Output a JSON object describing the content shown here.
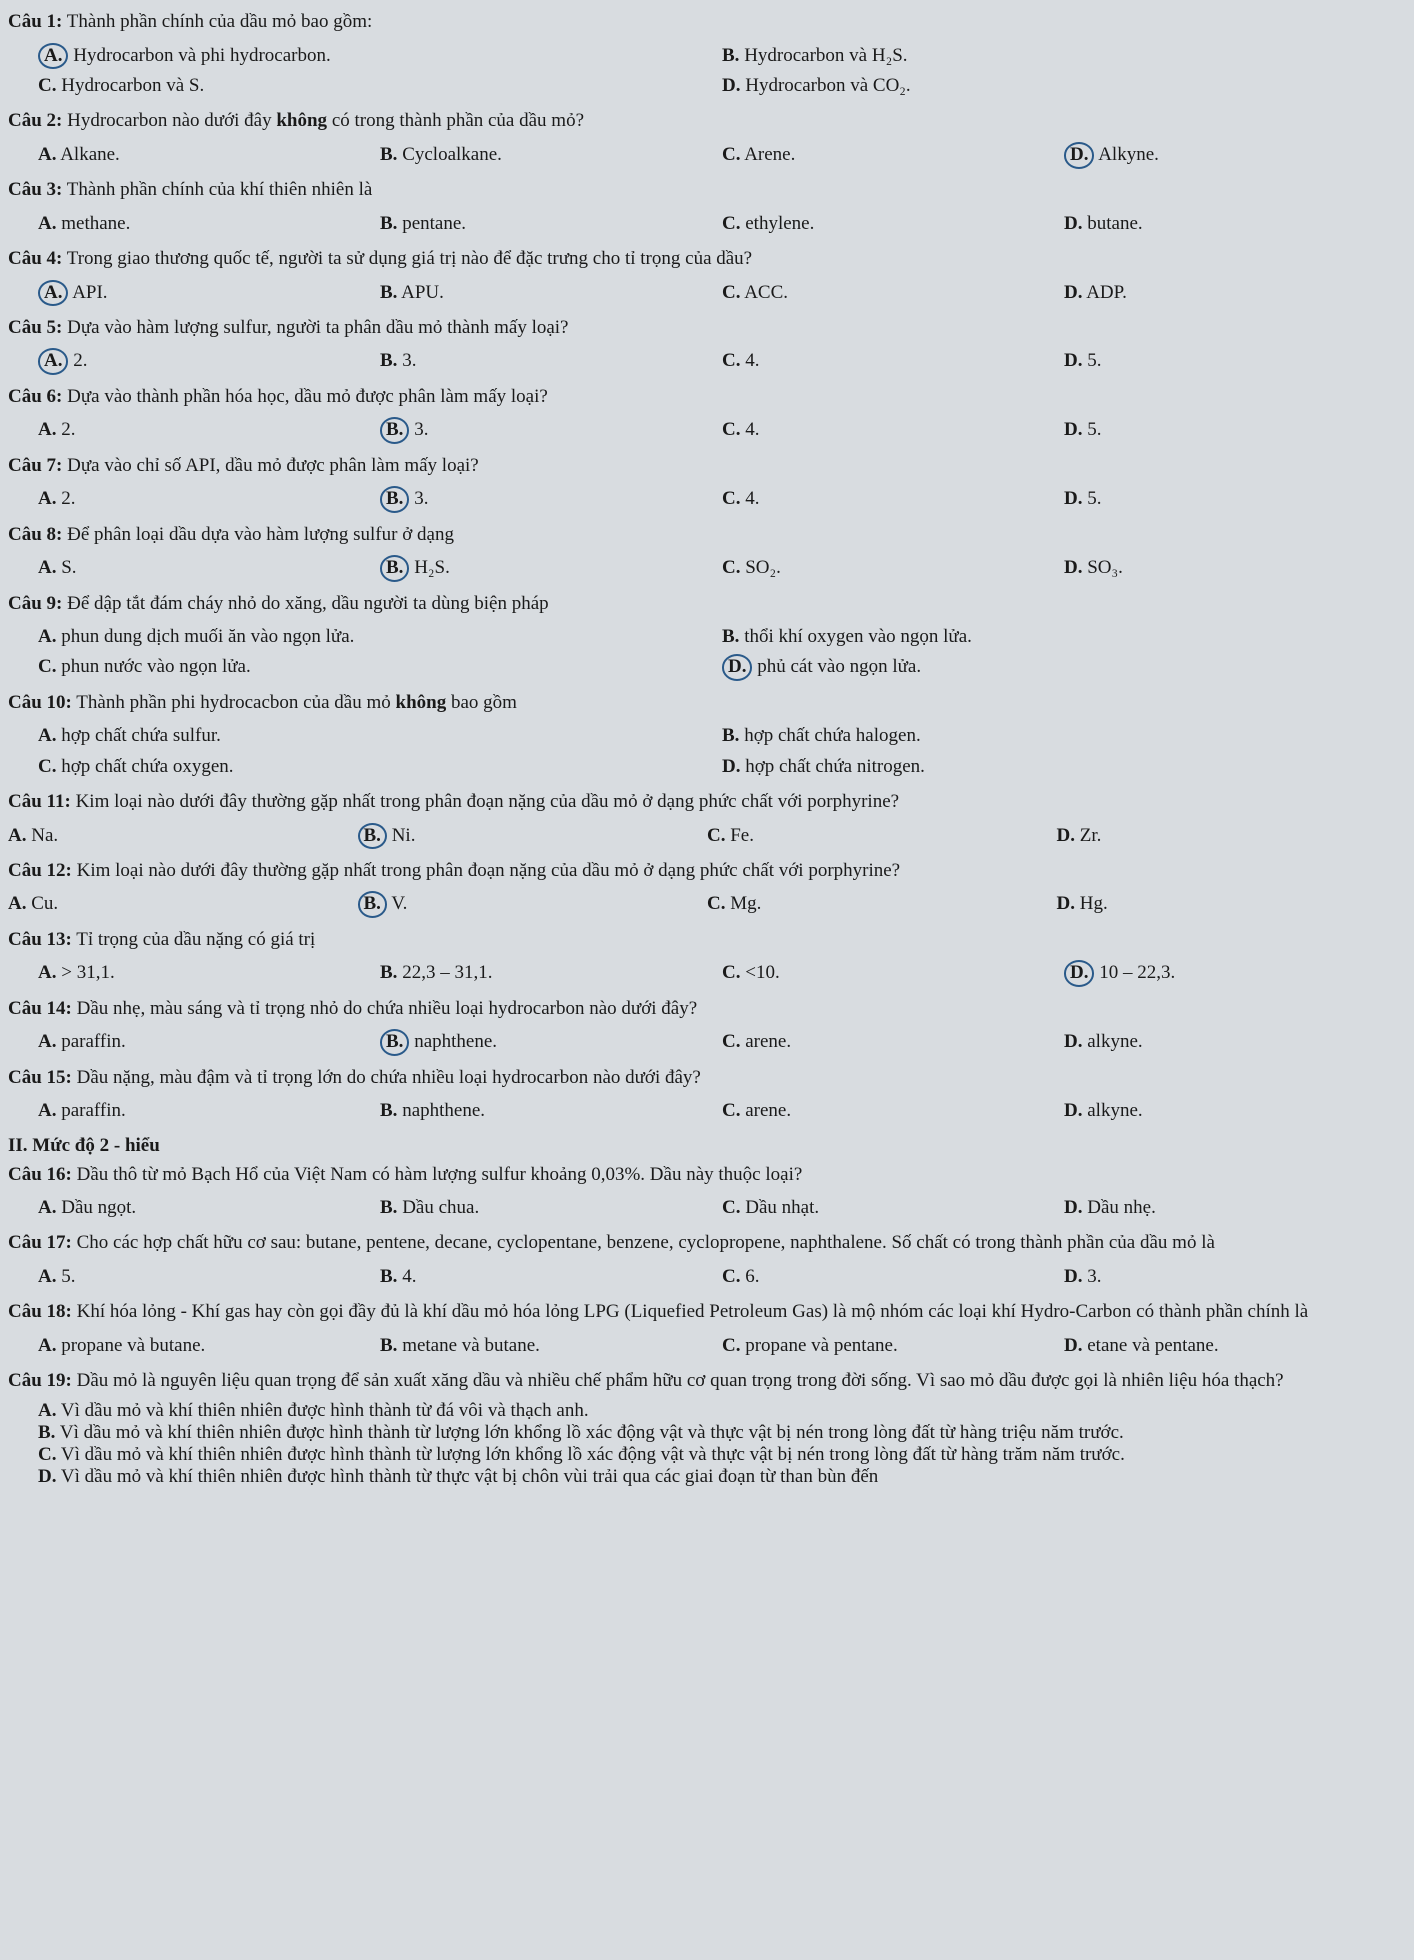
{
  "q1": {
    "label": "Câu 1:",
    "text": " Thành phần chính của dầu mỏ bao gồm:",
    "opts": {
      "A": "Hydrocarbon và phi hydrocarbon.",
      "B": "Hydrocarbon và H₂S.",
      "C": "Hydrocarbon và S.",
      "D": "Hydrocarbon và CO₂."
    },
    "circled": "A"
  },
  "q2": {
    "label": "Câu 2:",
    "text": " Hydrocarbon nào dưới đây ",
    "bold": "không",
    "text2": " có trong thành phần của dầu mỏ?",
    "opts": {
      "A": "Alkane.",
      "B": "Cycloalkane.",
      "C": "Arene.",
      "D": "Alkyne."
    },
    "circled": "D"
  },
  "q3": {
    "label": "Câu 3:",
    "text": " Thành phần chính của khí thiên nhiên là",
    "opts": {
      "A": "methane.",
      "B": "pentane.",
      "C": "ethylene.",
      "D": "butane."
    }
  },
  "q4": {
    "label": "Câu 4:",
    "text": " Trong giao thương quốc tế, người ta sử dụng giá trị nào để đặc trưng cho tỉ trọng của dầu?",
    "opts": {
      "A": "API.",
      "B": "APU.",
      "C": "ACC.",
      "D": "ADP."
    },
    "circled": "A"
  },
  "q5": {
    "label": "Câu 5:",
    "text": " Dựa vào hàm lượng sulfur, người ta phân dầu mỏ thành mấy loại?",
    "opts": {
      "A": "2.",
      "B": "3.",
      "C": "4.",
      "D": "5."
    },
    "circled": "A"
  },
  "q6": {
    "label": "Câu 6:",
    "text": " Dựa vào thành phần hóa học, dầu mỏ được phân làm mấy loại?",
    "opts": {
      "A": "2.",
      "B": "3.",
      "C": "4.",
      "D": "5."
    },
    "circled": "B"
  },
  "q7": {
    "label": "Câu 7:",
    "text": " Dựa vào chỉ số API, dầu mỏ được phân làm mấy loại?",
    "opts": {
      "A": "2.",
      "B": "3.",
      "C": "4.",
      "D": "5."
    },
    "circled": "B"
  },
  "q8": {
    "label": "Câu 8:",
    "text": " Để phân loại dầu dựa vào hàm lượng sulfur ở dạng",
    "opts": {
      "A": "S.",
      "B": "H₂S.",
      "C": "SO₂.",
      "D": "SO₃."
    },
    "circled": "B"
  },
  "q9": {
    "label": "Câu 9:",
    "text": " Để dập tắt đám cháy nhỏ do xăng, dầu người ta dùng biện pháp",
    "opts": {
      "A": "phun dung dịch muối ăn vào ngọn lửa.",
      "B": "thổi khí oxygen vào ngọn lửa.",
      "C": "phun nước vào ngọn lửa.",
      "D": "phủ cát vào ngọn lửa."
    },
    "circled": "D"
  },
  "q10": {
    "label": "Câu 10:",
    "text": " Thành phần phi hydrocacbon của dầu mỏ ",
    "bold": "không",
    "text2": " bao gồm",
    "opts": {
      "A": "hợp chất chứa sulfur.",
      "B": "hợp chất chứa halogen.",
      "C": "hợp chất chứa oxygen.",
      "D": "hợp chất chứa nitrogen."
    }
  },
  "q11": {
    "label": "Câu 11:",
    "text": " Kim loại nào dưới đây thường gặp nhất trong phân đoạn nặng của dầu mỏ ở dạng phức chất với porphyrine?",
    "opts": {
      "A": "Na.",
      "B": "Ni.",
      "C": "Fe.",
      "D": "Zr."
    },
    "circled": "B"
  },
  "q12": {
    "label": "Câu 12:",
    "text": " Kim loại nào dưới đây thường gặp nhất trong phân đoạn nặng của dầu mỏ ở dạng phức chất với porphyrine?",
    "opts": {
      "A": "Cu.",
      "B": "V.",
      "C": "Mg.",
      "D": "Hg."
    },
    "circled": "B"
  },
  "q13": {
    "label": "Câu 13:",
    "text": " Tỉ trọng của dầu nặng có giá trị",
    "opts": {
      "A": "> 31,1.",
      "B": "22,3 – 31,1.",
      "C": "<10.",
      "D": "10 – 22,3."
    },
    "circled": "D"
  },
  "q14": {
    "label": "Câu 14:",
    "text": " Dầu nhẹ, màu sáng và tỉ trọng nhỏ do chứa nhiều loại hydrocarbon nào dưới đây?",
    "opts": {
      "A": "paraffin.",
      "B": "naphthene.",
      "C": "arene.",
      "D": "alkyne."
    },
    "circled": "B"
  },
  "q15": {
    "label": "Câu 15:",
    "text": " Dầu nặng, màu đậm và tỉ trọng lớn do chứa nhiều loại hydrocarbon nào dưới đây?",
    "opts": {
      "A": "paraffin.",
      "B": "naphthene.",
      "C": "arene.",
      "D": "alkyne."
    }
  },
  "section2": "II. Mức độ 2 - hiểu",
  "q16": {
    "label": "Câu 16:",
    "text": " Dầu thô từ mỏ Bạch Hổ của Việt Nam có hàm lượng sulfur khoảng 0,03%. Dầu này thuộc loại?",
    "opts": {
      "A": "Dầu ngọt.",
      "B": "Dầu chua.",
      "C": "Dầu nhạt.",
      "D": "Dầu nhẹ."
    }
  },
  "q17": {
    "label": "Câu 17:",
    "text": " Cho các hợp chất hữu cơ sau: butane, pentene, decane, cyclopentane, benzene, cyclopropene, naphthalene. Số chất có trong thành phần của dầu mỏ là",
    "opts": {
      "A": "5.",
      "B": "4.",
      "C": "6.",
      "D": "3."
    }
  },
  "q18": {
    "label": "Câu 18:",
    "text": " Khí hóa lỏng - Khí gas hay còn gọi đầy đủ là khí dầu mỏ hóa lỏng LPG (Liquefied Petroleum Gas) là mộ nhóm các loại khí Hydro-Carbon có thành phần chính là",
    "opts": {
      "A": "propane và butane.",
      "B": "metane và butane.",
      "C": "propane và pentane.",
      "D": "etane và pentane."
    }
  },
  "q19": {
    "label": "Câu 19:",
    "text": " Dầu mỏ là nguyên liệu quan trọng để sản xuất xăng dầu và nhiều chế phẩm hữu cơ quan trọng trong đời sống. Vì sao mỏ dầu được gọi là nhiên liệu hóa thạch?",
    "opts": {
      "A": "Vì dầu mỏ và khí thiên nhiên được hình thành từ đá vôi và thạch anh.",
      "B": "Vì dầu mỏ và khí thiên nhiên được hình thành từ lượng lớn khổng lồ xác động vật và thực vật bị nén trong lòng đất từ hàng triệu năm trước.",
      "C": "Vì dầu mỏ và khí thiên nhiên được hình thành từ lượng lớn khổng lồ xác động vật và thực vật bị nén trong lòng đất từ hàng trăm năm trước.",
      "D": "Vì dầu mỏ và khí thiên nhiên được hình thành từ thực vật bị chôn vùi trải qua các giai đoạn từ than bùn đến"
    }
  }
}
